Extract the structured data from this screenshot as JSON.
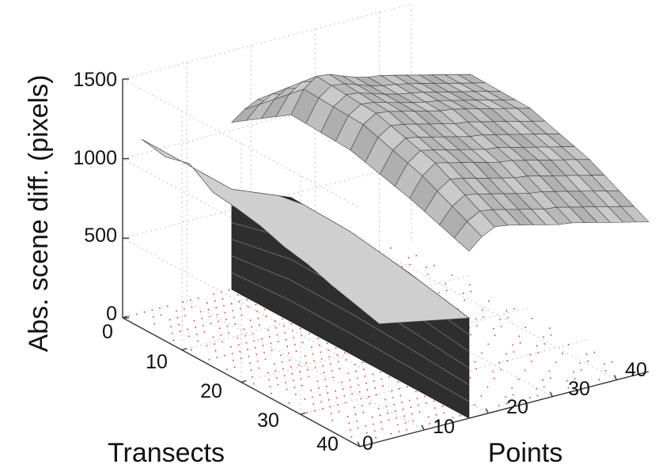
{
  "chart_data": {
    "type": "surface3d",
    "xlabel": "Points",
    "ylabel": "Transects",
    "zlabel": "Abs. scene diff. (pixels)",
    "x_ticks": [
      "0",
      "10",
      "20",
      "30",
      "40"
    ],
    "y_ticks": [
      "0",
      "10",
      "20",
      "30",
      "40"
    ],
    "z_ticks": [
      "0",
      "500",
      "1000",
      "1500"
    ],
    "xlim": [
      0,
      45
    ],
    "ylim": [
      0,
      40
    ],
    "zlim": [
      0,
      1500
    ],
    "grid": true,
    "surface_color": "#b9b9b9",
    "contour_color": "#e03030",
    "surface_rows": [
      {
        "points": [
          17,
          19,
          21,
          23,
          25,
          27,
          29,
          31,
          33,
          35,
          37,
          39,
          41,
          43,
          45
        ],
        "transect": 0,
        "values": [
          1050,
          1110,
          1150,
          1120,
          1080,
          1030,
          1000,
          980,
          960,
          950,
          940,
          930,
          920,
          910,
          900
        ]
      },
      {
        "points": [
          17,
          19,
          21,
          23,
          25,
          27,
          29,
          31,
          33,
          35,
          37,
          39,
          41,
          43,
          45
        ],
        "transect": 10,
        "values": [
          1300,
          1440,
          1500,
          1490,
          1460,
          1430,
          1410,
          1400,
          1380,
          1360,
          1340,
          1320,
          1300,
          1280,
          1260
        ]
      },
      {
        "points": [
          17,
          19,
          21,
          23,
          25,
          27,
          29,
          31,
          33,
          35,
          37,
          39,
          41,
          43,
          45
        ],
        "transect": 20,
        "values": [
          1280,
          1420,
          1470,
          1460,
          1440,
          1420,
          1400,
          1380,
          1370,
          1350,
          1330,
          1310,
          1290,
          1270,
          1250
        ]
      },
      {
        "points": [
          17,
          19,
          21,
          23,
          25,
          27,
          29,
          31,
          33,
          35,
          37,
          39,
          41,
          43,
          45
        ],
        "transect": 30,
        "values": [
          1180,
          1300,
          1360,
          1340,
          1320,
          1300,
          1280,
          1260,
          1250,
          1230,
          1210,
          1190,
          1170,
          1150,
          1130
        ]
      },
      {
        "points": [
          17,
          19,
          21,
          23,
          25,
          27,
          29,
          31,
          33,
          35,
          37,
          39,
          41,
          43,
          45
        ],
        "transect": 40,
        "values": [
          1050,
          1120,
          1160,
          1150,
          1130,
          1110,
          1090,
          1070,
          1060,
          1040,
          1020,
          1000,
          980,
          960,
          940
        ]
      }
    ],
    "wall_point": 17,
    "left_ridge": {
      "transects": [
        0,
        4,
        8,
        12,
        16,
        20,
        24,
        28,
        32,
        36,
        40
      ],
      "values": [
        1090,
        1060,
        1100,
        1000,
        980,
        950,
        900,
        870,
        820,
        780,
        740
      ]
    }
  }
}
